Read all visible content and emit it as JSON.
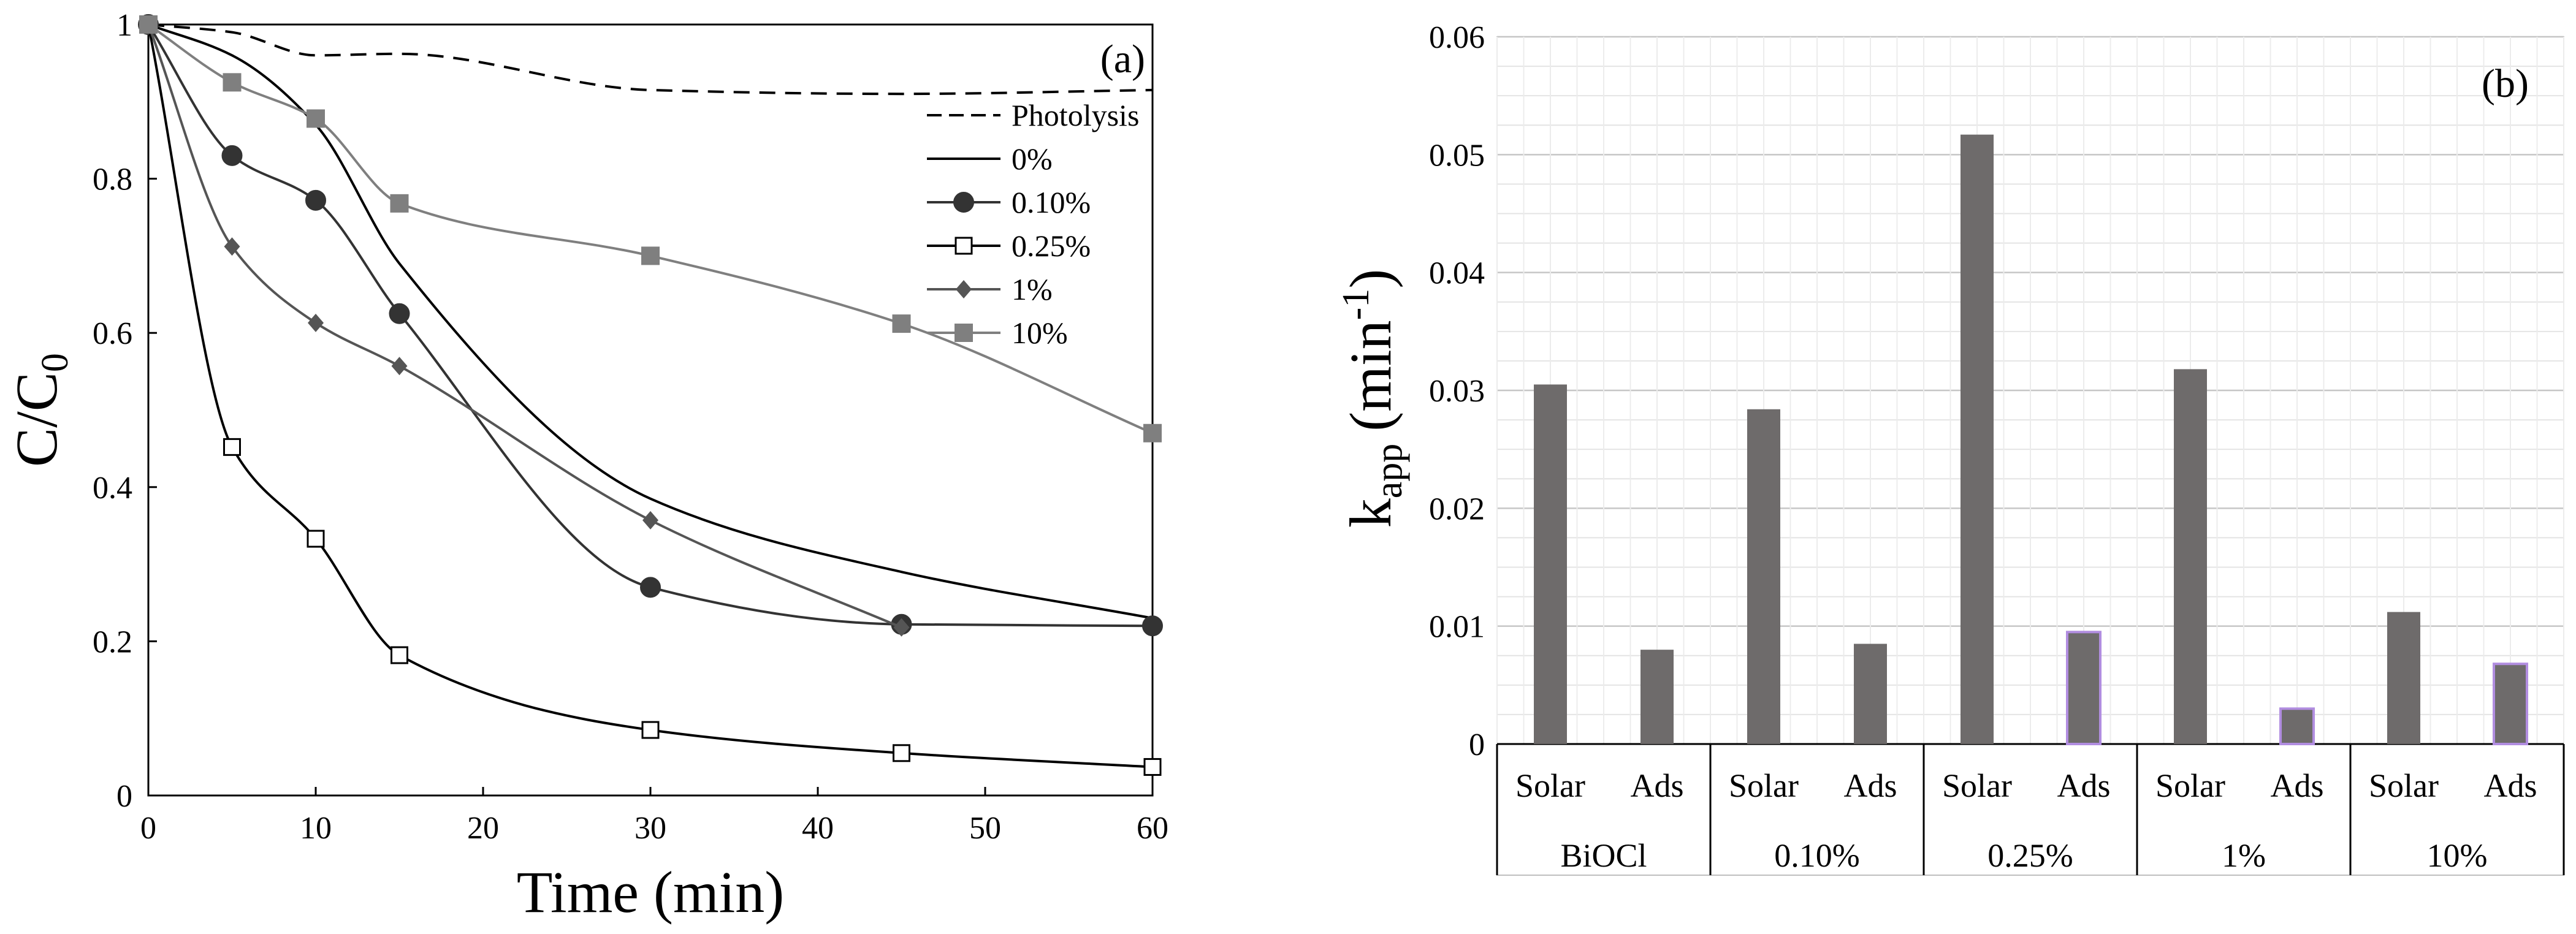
{
  "chart_data": [
    {
      "panel_label": "(a)",
      "type": "line",
      "xlabel": "Time (min)",
      "ylabel_main": "C/C",
      "ylabel_sub": "0",
      "xlim": [
        0,
        60
      ],
      "ylim": [
        0,
        1
      ],
      "xticks": [
        0,
        10,
        20,
        30,
        40,
        50,
        60
      ],
      "yticks": [
        0,
        0.2,
        0.4,
        0.6,
        0.8,
        1
      ],
      "ytick_labels": [
        "0",
        "0.2",
        "0.4",
        "0.6",
        "0.8",
        "1"
      ],
      "legend_position": "top-right",
      "series": [
        {
          "name": "Photolysis",
          "style": "dashed",
          "marker": "none",
          "color": "#000000",
          "x": [
            0,
            5,
            10,
            15,
            30,
            45,
            60
          ],
          "y": [
            1.0,
            0.99,
            0.96,
            0.962,
            0.915,
            0.91,
            0.915
          ]
        },
        {
          "name": "0%",
          "style": "solid",
          "marker": "none",
          "color": "#000000",
          "x": [
            0,
            5,
            10,
            15,
            30,
            45,
            60
          ],
          "y": [
            1.0,
            0.96,
            0.87,
            0.69,
            0.385,
            0.29,
            0.23
          ]
        },
        {
          "name": "0.10%",
          "style": "solid",
          "marker": "circle-filled",
          "color": "#333333",
          "x": [
            0,
            5,
            10,
            15,
            30,
            45,
            60
          ],
          "y": [
            1.0,
            0.83,
            0.772,
            0.625,
            0.27,
            0.222,
            0.22
          ]
        },
        {
          "name": "0.25%",
          "style": "solid",
          "marker": "square-open",
          "color": "#000000",
          "x": [
            0,
            5,
            10,
            15,
            30,
            45,
            60
          ],
          "y": [
            1.0,
            0.452,
            0.333,
            0.182,
            0.085,
            0.055,
            0.037
          ]
        },
        {
          "name": "1%",
          "style": "solid",
          "marker": "diamond-filled",
          "color": "#555555",
          "x": [
            0,
            5,
            10,
            15,
            30,
            45
          ],
          "y": [
            1.0,
            0.712,
            0.613,
            0.557,
            0.357,
            0.218
          ]
        },
        {
          "name": "10%",
          "style": "solid",
          "marker": "square-filled",
          "color": "#7f7f7f",
          "x": [
            0,
            5,
            10,
            15,
            30,
            45,
            60
          ],
          "y": [
            1.0,
            0.925,
            0.878,
            0.768,
            0.7,
            0.612,
            0.47
          ]
        }
      ]
    },
    {
      "panel_label": "(b)",
      "type": "bar",
      "ylabel_main": "k",
      "ylabel_sub": "app",
      "ylabel_unit": "(min",
      "ylabel_sup": "-1",
      "ylabel_close": ")",
      "ylim": [
        0,
        0.06
      ],
      "yticks": [
        0,
        0.01,
        0.02,
        0.03,
        0.04,
        0.05,
        0.06
      ],
      "ytick_labels": [
        "0",
        "0.01",
        "0.02",
        "0.03",
        "0.04",
        "0.05",
        "0.06"
      ],
      "groups": [
        "BiOCl",
        "0.10%",
        "0.25%",
        "1%",
        "10%"
      ],
      "subcategories": [
        "Solar",
        "Ads"
      ],
      "bar_color": "#6e6b6b",
      "ads_outline_color": "#b18de0",
      "values": [
        [
          0.0305,
          0.008
        ],
        [
          0.0284,
          0.0085
        ],
        [
          0.0517,
          0.0095
        ],
        [
          0.0318,
          0.003
        ],
        [
          0.0112,
          0.0068
        ]
      ]
    }
  ]
}
